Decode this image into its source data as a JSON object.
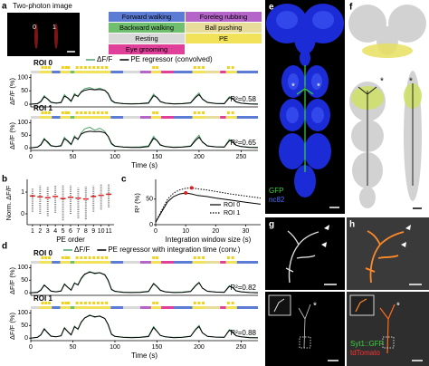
{
  "figure": {
    "a": {
      "letter": "a",
      "image_title": "Two-photon image",
      "roi_labels": [
        "0",
        "1"
      ]
    },
    "b": {
      "letter": "b"
    },
    "c": {
      "letter": "c"
    },
    "d": {
      "letter": "d"
    },
    "e": {
      "letter": "e",
      "marker": "*",
      "stains": [
        {
          "label": "GFP",
          "color": "#3cd23c"
        },
        {
          "label": "nc82",
          "color": "#4a6cff"
        }
      ]
    },
    "f": {
      "letter": "f",
      "marker": "*"
    },
    "g": {
      "letter": "g",
      "marker": "*"
    },
    "h": {
      "letter": "h",
      "marker": "*",
      "stains": [
        {
          "label": "Syt1::GFP",
          "color": "#3cd23c"
        },
        {
          "label": "tdTomato",
          "color": "#ff3030"
        }
      ]
    },
    "behavior_legend": [
      {
        "label": "Forward walking",
        "color": "#5b7bd5"
      },
      {
        "label": "Foreleg rubbing",
        "color": "#b565c9"
      },
      {
        "label": "Backward walking",
        "color": "#6fbf6f"
      },
      {
        "label": "Ball pushing",
        "color": "#e8dc9a"
      },
      {
        "label": "Resting",
        "color": "#d9d9d9"
      },
      {
        "label": "PE",
        "color": "#f2e25a"
      },
      {
        "label": "Eye grooming",
        "color": "#e0409a"
      }
    ],
    "ethogram": [
      {
        "start": 0,
        "end": 10,
        "behavior": 4
      },
      {
        "start": 10,
        "end": 25,
        "behavior": 5
      },
      {
        "start": 25,
        "end": 35,
        "behavior": 0
      },
      {
        "start": 35,
        "end": 47,
        "behavior": 5
      },
      {
        "start": 47,
        "end": 52,
        "behavior": 2
      },
      {
        "start": 52,
        "end": 95,
        "behavior": 5
      },
      {
        "start": 95,
        "end": 110,
        "behavior": 0
      },
      {
        "start": 110,
        "end": 130,
        "behavior": 4
      },
      {
        "start": 130,
        "end": 143,
        "behavior": 1
      },
      {
        "start": 143,
        "end": 155,
        "behavior": 5
      },
      {
        "start": 155,
        "end": 170,
        "behavior": 6
      },
      {
        "start": 170,
        "end": 192,
        "behavior": 0
      },
      {
        "start": 192,
        "end": 208,
        "behavior": 5
      },
      {
        "start": 208,
        "end": 225,
        "behavior": 3
      },
      {
        "start": 225,
        "end": 232,
        "behavior": 6
      },
      {
        "start": 232,
        "end": 245,
        "behavior": 5
      },
      {
        "start": 245,
        "end": 270,
        "behavior": 0
      }
    ],
    "pe_events": [
      14,
      18,
      22,
      38,
      42,
      45,
      55,
      60,
      65,
      70,
      75,
      80,
      85,
      90,
      146,
      150,
      195,
      200,
      205,
      235,
      240
    ],
    "pe_color": "#f0d21e"
  },
  "chart_data": [
    {
      "type": "line",
      "title": "ROI 0",
      "annotation": "R²=0.58",
      "ylabel": "ΔF/F (%)",
      "x": [
        0,
        8,
        12,
        16,
        20,
        24,
        30,
        36,
        40,
        44,
        48,
        52,
        56,
        60,
        64,
        70,
        76,
        82,
        88,
        92,
        96,
        100,
        110,
        120,
        130,
        140,
        146,
        150,
        154,
        160,
        170,
        180,
        190,
        196,
        200,
        204,
        210,
        220,
        230,
        236,
        240,
        244,
        250,
        260,
        270
      ],
      "xlim": [
        0,
        270
      ],
      "ylim": [
        -10,
        105
      ],
      "yticks": [
        0,
        50,
        100
      ],
      "series": [
        {
          "name": "ΔF/F",
          "color": "#4fa36b",
          "values": [
            0,
            3,
            12,
            32,
            18,
            6,
            4,
            8,
            36,
            22,
            10,
            40,
            28,
            48,
            58,
            62,
            55,
            60,
            52,
            38,
            12,
            5,
            3,
            2,
            3,
            6,
            38,
            24,
            9,
            4,
            2,
            3,
            6,
            30,
            42,
            18,
            6,
            3,
            3,
            28,
            22,
            8,
            4,
            2,
            1
          ]
        },
        {
          "name": "PE regressor (convolved)",
          "color": "#000000",
          "values": [
            0,
            2,
            10,
            28,
            20,
            8,
            4,
            6,
            30,
            24,
            12,
            35,
            30,
            45,
            52,
            56,
            54,
            55,
            52,
            40,
            15,
            6,
            2,
            1,
            2,
            4,
            32,
            26,
            10,
            4,
            1,
            2,
            5,
            26,
            36,
            20,
            7,
            3,
            2,
            24,
            22,
            9,
            4,
            1,
            0
          ]
        }
      ]
    },
    {
      "type": "line",
      "title": "ROI 1",
      "annotation": "R²=0.65",
      "ylabel": "ΔF/F (%)",
      "xlabel": "Time (s)",
      "x": [
        0,
        8,
        12,
        16,
        20,
        24,
        30,
        36,
        40,
        44,
        48,
        52,
        56,
        60,
        64,
        70,
        76,
        82,
        88,
        92,
        96,
        100,
        110,
        120,
        130,
        140,
        146,
        150,
        154,
        160,
        170,
        180,
        190,
        196,
        200,
        204,
        210,
        220,
        230,
        236,
        240,
        244,
        250,
        260,
        270
      ],
      "xlim": [
        0,
        270
      ],
      "xticks": [
        0,
        50,
        100,
        150,
        200,
        250
      ],
      "ylim": [
        -10,
        105
      ],
      "yticks": [
        0,
        50,
        100
      ],
      "series": [
        {
          "color": "#4fa36b",
          "values": [
            0,
            4,
            14,
            38,
            20,
            7,
            5,
            10,
            42,
            25,
            12,
            48,
            32,
            60,
            75,
            82,
            70,
            78,
            65,
            45,
            14,
            6,
            4,
            3,
            4,
            8,
            46,
            28,
            10,
            5,
            3,
            4,
            8,
            36,
            50,
            22,
            7,
            4,
            4,
            34,
            26,
            10,
            5,
            3,
            2
          ]
        },
        {
          "color": "#000000",
          "values": [
            0,
            3,
            12,
            34,
            24,
            9,
            5,
            8,
            36,
            28,
            14,
            42,
            35,
            55,
            62,
            66,
            64,
            65,
            60,
            46,
            18,
            7,
            3,
            2,
            2,
            5,
            38,
            30,
            12,
            5,
            2,
            3,
            6,
            30,
            42,
            24,
            8,
            4,
            3,
            28,
            26,
            11,
            5,
            2,
            1
          ]
        }
      ]
    },
    {
      "type": "range",
      "ylabel": "Norm. ΔF/F",
      "xlabel": "PE order",
      "x": [
        1,
        2,
        3,
        4,
        5,
        6,
        7,
        8,
        9,
        10,
        11
      ],
      "xlim": [
        0.3,
        11.7
      ],
      "xticks": [
        1,
        2,
        3,
        4,
        5,
        6,
        7,
        8,
        9,
        10,
        11
      ],
      "ylim": [
        -0.5,
        1.5
      ],
      "yticks": [
        0,
        1
      ],
      "range_color": "#777777",
      "mean_color": "#e02020",
      "means": [
        0.82,
        0.78,
        0.74,
        0.8,
        0.7,
        0.76,
        0.72,
        0.68,
        0.8,
        0.85,
        0.9
      ],
      "mins": [
        0.1,
        0.0,
        -0.1,
        0.05,
        -0.3,
        0.0,
        -0.2,
        -0.25,
        0.1,
        0.2,
        0.3
      ],
      "maxs": [
        1.2,
        1.3,
        1.25,
        1.3,
        1.35,
        1.3,
        1.2,
        1.25,
        1.3,
        1.35,
        1.4
      ]
    },
    {
      "type": "line",
      "ylabel": "R² (%)",
      "xlabel": "Integration window size (s)",
      "x": [
        0,
        2,
        4,
        6,
        8,
        10,
        12,
        14,
        17,
        20,
        25,
        30,
        35
      ],
      "xlim": [
        0,
        35
      ],
      "xticks": [
        0,
        10,
        20,
        30
      ],
      "ylim": [
        0,
        85
      ],
      "yticks": [
        0,
        50
      ],
      "highlight_color": "#e02020",
      "series": [
        {
          "name": "ROI 0",
          "color": "#000000",
          "dash": false,
          "highlight_index": 5,
          "values": [
            5,
            25,
            45,
            55,
            60,
            62,
            60,
            57,
            55,
            52,
            48,
            44,
            40
          ]
        },
        {
          "name": "ROI 1",
          "color": "#000000",
          "dash": true,
          "highlight_index": 6,
          "values": [
            5,
            28,
            50,
            62,
            68,
            71,
            72,
            70,
            68,
            65,
            60,
            56,
            52
          ]
        }
      ]
    },
    {
      "type": "line",
      "title": "ROI 0",
      "annotation": "R²=0.82",
      "ylabel": "ΔF/F (%)",
      "x": [
        0,
        8,
        12,
        16,
        20,
        24,
        30,
        36,
        40,
        44,
        48,
        52,
        56,
        60,
        64,
        70,
        76,
        82,
        88,
        92,
        96,
        100,
        110,
        120,
        130,
        140,
        146,
        150,
        154,
        160,
        170,
        180,
        190,
        196,
        200,
        204,
        210,
        220,
        230,
        236,
        240,
        244,
        250,
        260,
        270
      ],
      "xlim": [
        0,
        270
      ],
      "ylim": [
        -10,
        105
      ],
      "yticks": [
        0,
        50,
        100
      ],
      "series": [
        {
          "name": "ΔF/F",
          "color": "#4fa36b",
          "values": [
            0,
            3,
            12,
            32,
            18,
            6,
            4,
            8,
            36,
            22,
            10,
            40,
            30,
            55,
            72,
            85,
            75,
            80,
            70,
            48,
            12,
            5,
            3,
            2,
            3,
            6,
            38,
            24,
            9,
            4,
            2,
            3,
            6,
            30,
            42,
            18,
            6,
            3,
            3,
            28,
            22,
            8,
            4,
            2,
            1
          ]
        },
        {
          "name": "PE regressor with integration time (conv.)",
          "color": "#000000",
          "values": [
            0,
            2,
            11,
            30,
            19,
            7,
            4,
            7,
            34,
            22,
            11,
            38,
            32,
            58,
            74,
            82,
            78,
            80,
            72,
            50,
            14,
            6,
            2,
            1,
            2,
            5,
            36,
            25,
            10,
            4,
            1,
            2,
            5,
            28,
            40,
            19,
            6,
            3,
            2,
            26,
            21,
            8,
            4,
            1,
            0
          ]
        }
      ]
    },
    {
      "type": "line",
      "title": "ROI 1",
      "annotation": "R²=0.88",
      "ylabel": "ΔF/F (%)",
      "xlabel": "Time (s)",
      "x": [
        0,
        8,
        12,
        16,
        20,
        24,
        30,
        36,
        40,
        44,
        48,
        52,
        56,
        60,
        64,
        70,
        76,
        82,
        88,
        92,
        96,
        100,
        110,
        120,
        130,
        140,
        146,
        150,
        154,
        160,
        170,
        180,
        190,
        196,
        200,
        204,
        210,
        220,
        230,
        236,
        240,
        244,
        250,
        260,
        270
      ],
      "xlim": [
        0,
        270
      ],
      "xticks": [
        0,
        50,
        100,
        150,
        200,
        250
      ],
      "ylim": [
        -10,
        105
      ],
      "yticks": [
        0,
        50,
        100
      ],
      "series": [
        {
          "color": "#4fa36b",
          "values": [
            0,
            4,
            14,
            38,
            20,
            7,
            5,
            10,
            42,
            25,
            12,
            48,
            34,
            62,
            80,
            92,
            82,
            88,
            78,
            52,
            14,
            6,
            4,
            3,
            4,
            8,
            46,
            28,
            10,
            5,
            3,
            4,
            8,
            36,
            50,
            22,
            7,
            4,
            4,
            34,
            26,
            10,
            5,
            3,
            2
          ]
        },
        {
          "color": "#000000",
          "values": [
            0,
            3,
            13,
            36,
            22,
            8,
            5,
            9,
            40,
            26,
            13,
            45,
            36,
            64,
            80,
            90,
            85,
            87,
            78,
            54,
            16,
            7,
            3,
            2,
            3,
            6,
            42,
            27,
            11,
            5,
            2,
            3,
            7,
            34,
            46,
            21,
            7,
            4,
            3,
            31,
            24,
            9,
            5,
            2,
            1
          ]
        }
      ]
    }
  ]
}
